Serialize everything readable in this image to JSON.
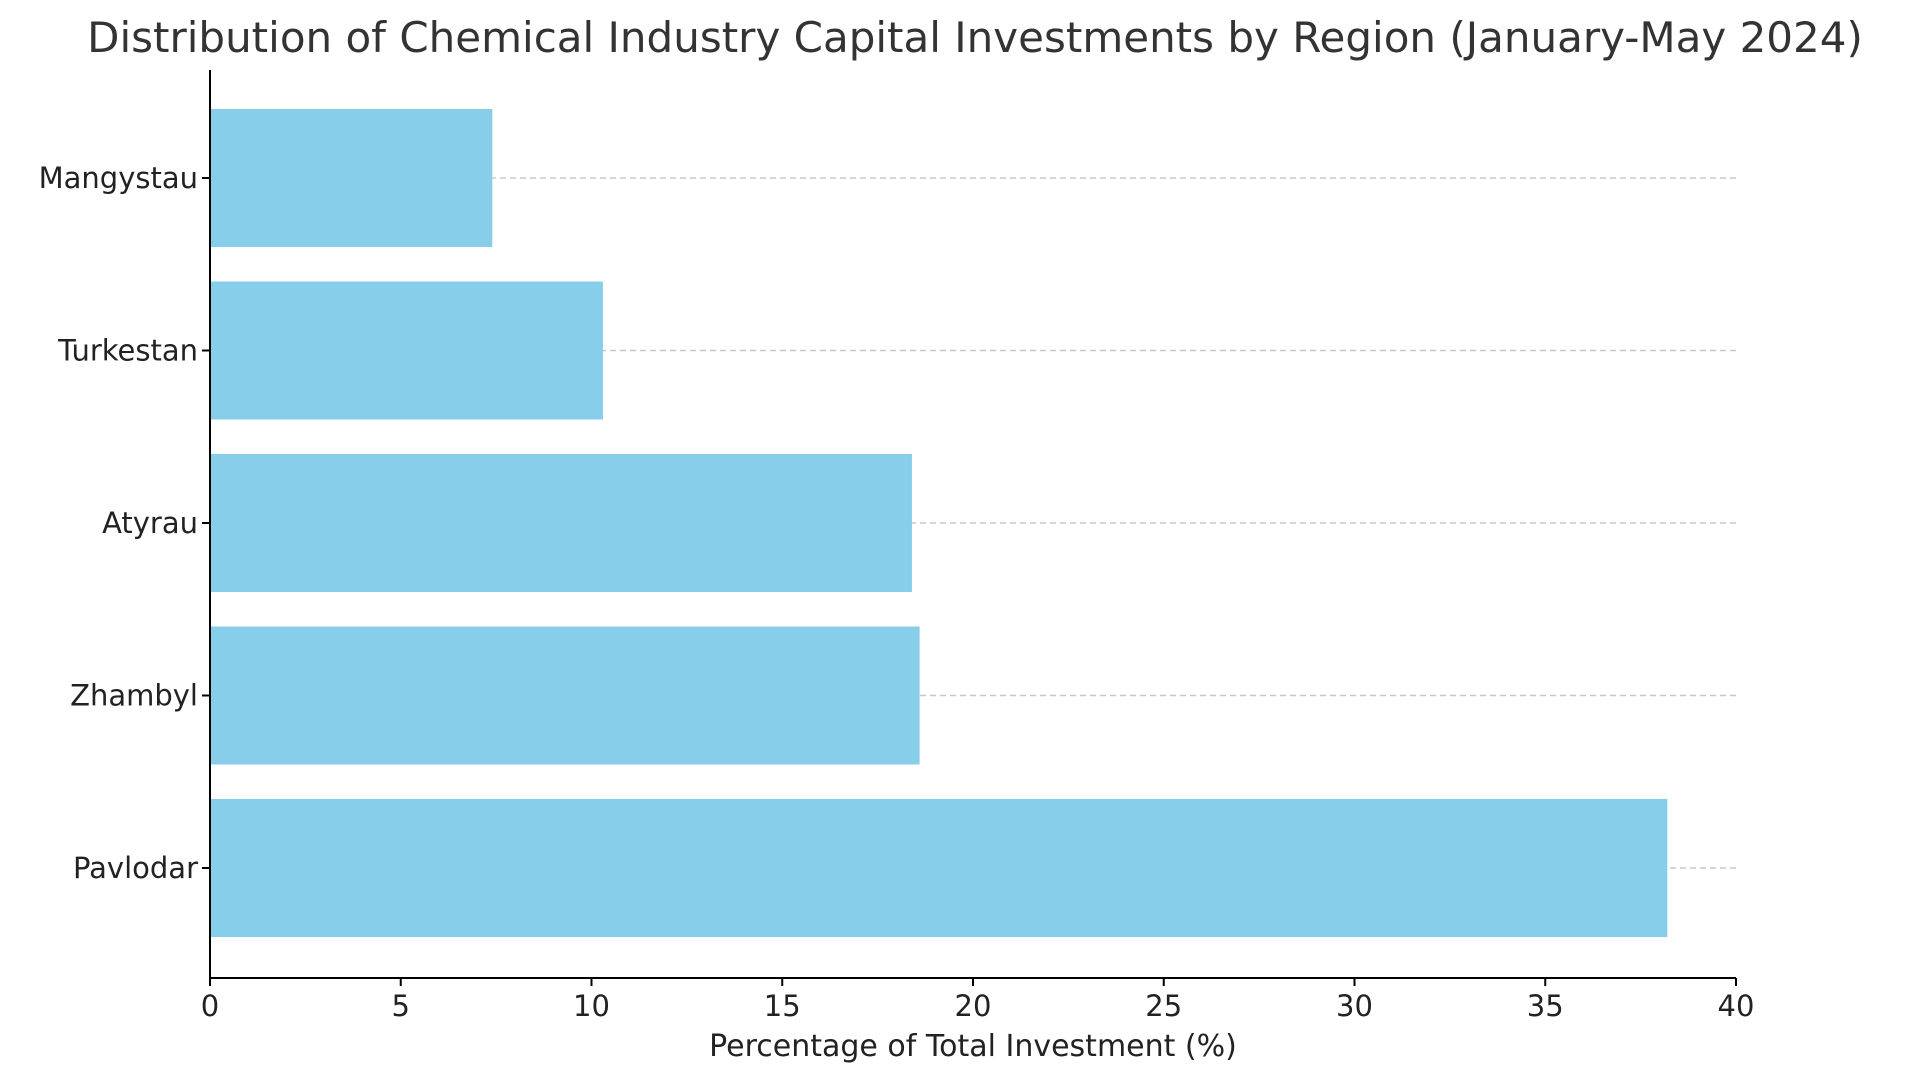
{
  "chart_data": {
    "type": "bar",
    "orientation": "horizontal",
    "title": "Distribution of Chemical Industry Capital Investments by Region (January-May 2024)",
    "xlabel": "Percentage of Total Investment (%)",
    "ylabel": "",
    "categories": [
      "Pavlodar",
      "Zhambyl",
      "Atyrau",
      "Turkestan",
      "Mangystau"
    ],
    "values": [
      38.2,
      18.6,
      18.4,
      10.3,
      7.4
    ],
    "xlim": [
      0,
      40
    ],
    "x_ticks": [
      "0",
      "5",
      "10",
      "15",
      "20",
      "25",
      "30",
      "35",
      "40"
    ],
    "grid": "horizontal dashed",
    "bar_color": "#87CEEB",
    "grid_color": "#C8C8C8",
    "axis_color": "#000000",
    "title_color": "#333333"
  }
}
